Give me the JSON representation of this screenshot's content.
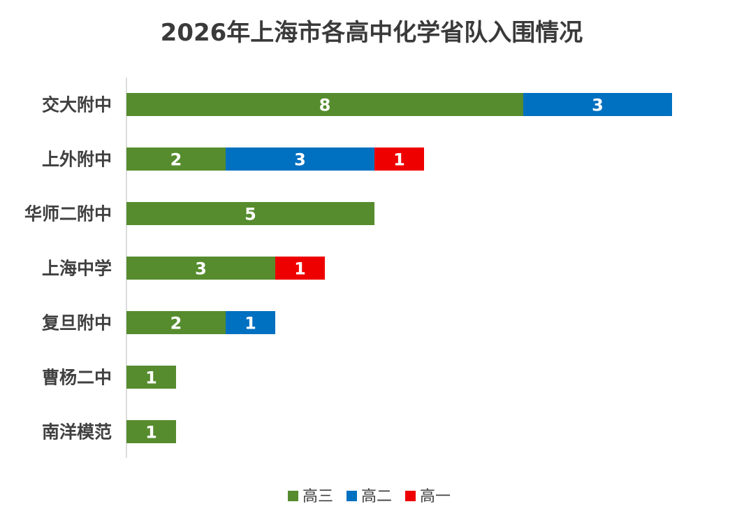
{
  "chart_data": {
    "type": "bar",
    "orientation": "horizontal",
    "stacked": true,
    "title": "2026年上海市各高中化学省队入围情况",
    "categories": [
      "交大附中",
      "上外附中",
      "华师二附中",
      "上海中学",
      "复旦附中",
      "曹杨二中",
      "南洋模范"
    ],
    "series": [
      {
        "name": "高三",
        "color": "#568C2E",
        "values": [
          8,
          2,
          5,
          3,
          2,
          1,
          1
        ]
      },
      {
        "name": "高二",
        "color": "#0070C0",
        "values": [
          3,
          3,
          0,
          0,
          1,
          0,
          0
        ]
      },
      {
        "name": "高一",
        "color": "#EE0000",
        "values": [
          0,
          1,
          0,
          1,
          0,
          0,
          0
        ]
      }
    ],
    "xlim": [
      0,
      11
    ],
    "grid": false,
    "legend": "bottom-center"
  }
}
